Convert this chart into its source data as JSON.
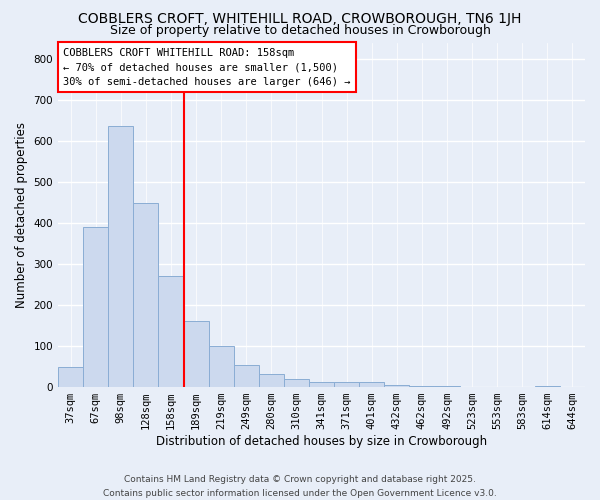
{
  "title": "COBBLERS CROFT, WHITEHILL ROAD, CROWBOROUGH, TN6 1JH",
  "subtitle": "Size of property relative to detached houses in Crowborough",
  "xlabel": "Distribution of detached houses by size in Crowborough",
  "ylabel": "Number of detached properties",
  "bar_labels": [
    "37sqm",
    "67sqm",
    "98sqm",
    "128sqm",
    "158sqm",
    "189sqm",
    "219sqm",
    "249sqm",
    "280sqm",
    "310sqm",
    "341sqm",
    "371sqm",
    "401sqm",
    "432sqm",
    "462sqm",
    "492sqm",
    "523sqm",
    "553sqm",
    "583sqm",
    "614sqm",
    "644sqm"
  ],
  "bar_values": [
    48,
    390,
    635,
    448,
    270,
    160,
    98,
    52,
    30,
    18,
    12,
    10,
    12,
    3,
    2,
    1,
    0,
    0,
    0,
    1,
    0
  ],
  "bar_color": "#ccd9ee",
  "bar_edge_color": "#8aadd4",
  "red_line_index": 4,
  "ylim": [
    0,
    840
  ],
  "yticks": [
    0,
    100,
    200,
    300,
    400,
    500,
    600,
    700,
    800
  ],
  "annotation_title": "COBBLERS CROFT WHITEHILL ROAD: 158sqm",
  "annotation_line1": "← 70% of detached houses are smaller (1,500)",
  "annotation_line2": "30% of semi-detached houses are larger (646) →",
  "background_color": "#e8eef8",
  "grid_color": "#ffffff",
  "footer_line1": "Contains HM Land Registry data © Crown copyright and database right 2025.",
  "footer_line2": "Contains public sector information licensed under the Open Government Licence v3.0.",
  "title_fontsize": 10,
  "subtitle_fontsize": 9,
  "axis_label_fontsize": 8.5,
  "tick_fontsize": 7.5,
  "annot_fontsize": 7.5,
  "footer_fontsize": 6.5
}
